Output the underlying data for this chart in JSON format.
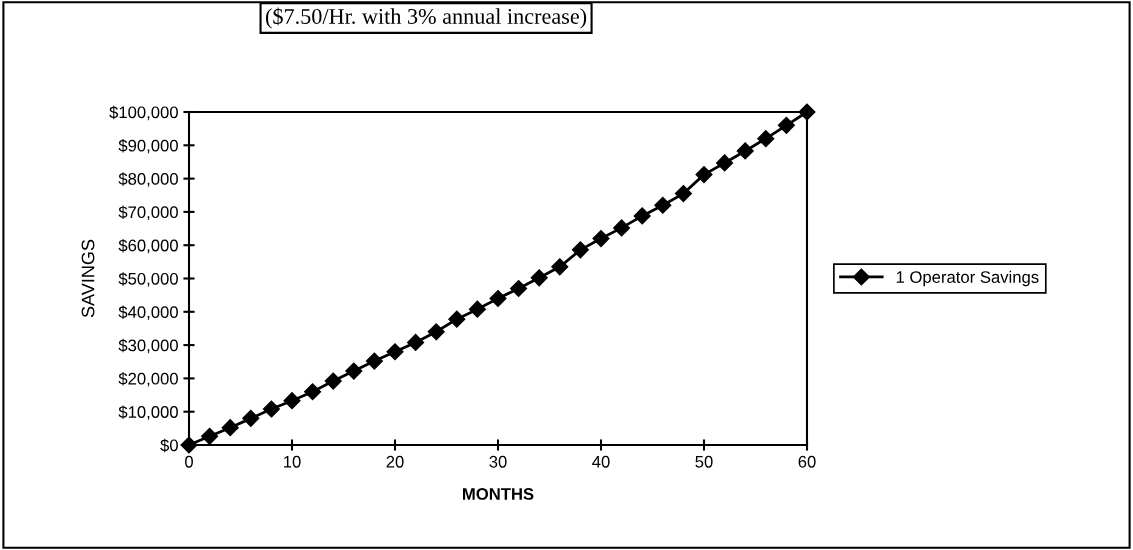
{
  "chart_data": {
    "type": "line",
    "title": "($7.50/Hr. with 3% annual increase)",
    "xlabel": "MONTHS",
    "ylabel": "SAVINGS",
    "x": [
      0,
      2,
      4,
      6,
      8,
      10,
      12,
      14,
      16,
      18,
      20,
      22,
      24,
      26,
      28,
      30,
      32,
      34,
      36,
      38,
      40,
      42,
      44,
      46,
      48,
      50,
      52,
      54,
      56,
      58,
      60
    ],
    "series": [
      {
        "name": "1 Operator Savings",
        "color": "#000000",
        "values": [
          0,
          2600,
          5200,
          8000,
          10800,
          13300,
          16000,
          19200,
          22200,
          25200,
          28000,
          30800,
          34000,
          37800,
          40800,
          44000,
          47000,
          50200,
          53500,
          58600,
          62000,
          65200,
          68800,
          72000,
          75500,
          81200,
          84700,
          88300,
          92000,
          96000,
          100000
        ]
      }
    ],
    "xlim": [
      0,
      60
    ],
    "xticks": [
      0,
      10,
      20,
      30,
      40,
      50,
      60
    ],
    "ylim": [
      0,
      100000
    ],
    "yticks": [
      {
        "value": 0,
        "label": "$0"
      },
      {
        "value": 10000,
        "label": "$10,000"
      },
      {
        "value": 20000,
        "label": "$20,000"
      },
      {
        "value": 30000,
        "label": "$30,000"
      },
      {
        "value": 40000,
        "label": "$40,000"
      },
      {
        "value": 50000,
        "label": "$50,000"
      },
      {
        "value": 60000,
        "label": "$60,000"
      },
      {
        "value": 70000,
        "label": "$70,000"
      },
      {
        "value": 80000,
        "label": "$80,000"
      },
      {
        "value": 90000,
        "label": "$90,000"
      },
      {
        "value": 100000,
        "label": "$100,000"
      }
    ],
    "grid": false,
    "legend": "right",
    "marker": "diamond",
    "line_style": "solid"
  }
}
